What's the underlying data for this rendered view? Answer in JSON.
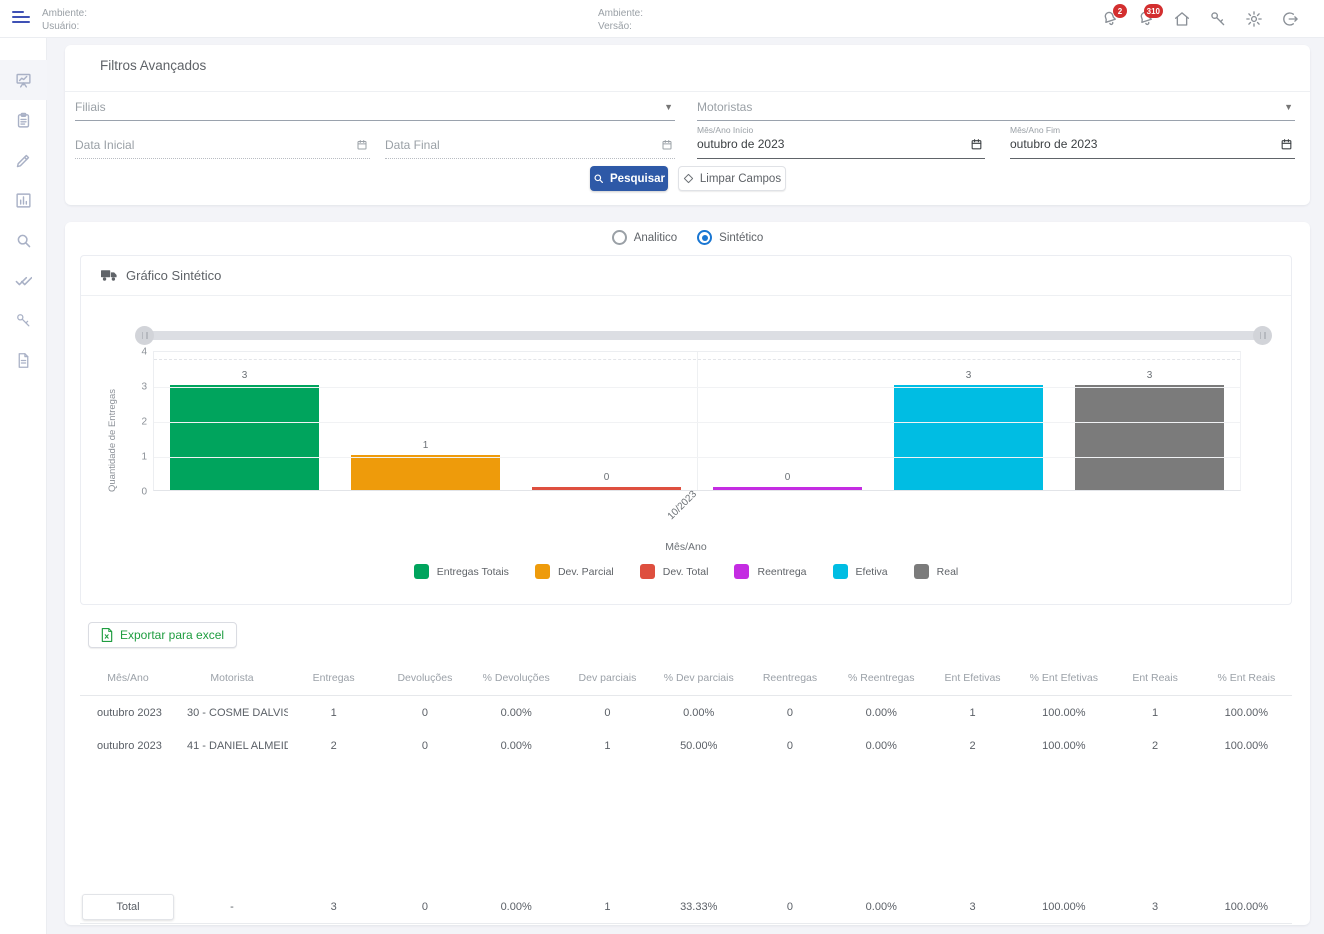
{
  "topbar": {
    "left": {
      "ambiente_label": "Ambiente:",
      "usuario_label": "Usuário:"
    },
    "center": {
      "ambiente_label": "Ambiente:",
      "versao_label": "Versão:"
    },
    "icons": [
      {
        "name": "notifications-bell-icon",
        "badge": "2"
      },
      {
        "name": "messages-bell-icon",
        "badge": "310"
      },
      {
        "name": "home-icon",
        "badge": ""
      },
      {
        "name": "key-icon",
        "badge": ""
      },
      {
        "name": "gear-icon",
        "badge": ""
      },
      {
        "name": "logout-icon",
        "badge": ""
      }
    ]
  },
  "sidebar": {
    "items": [
      {
        "icon": "chart-board-icon",
        "active": true
      },
      {
        "icon": "clipboard-icon",
        "active": false
      },
      {
        "icon": "pencil-icon",
        "active": false
      },
      {
        "icon": "bar-chart-icon",
        "active": false
      },
      {
        "icon": "search-icon",
        "active": false
      },
      {
        "icon": "double-check-icon",
        "active": false
      },
      {
        "icon": "key-icon",
        "active": false
      },
      {
        "icon": "document-icon",
        "active": false
      }
    ]
  },
  "filters": {
    "title": "Filtros Avançados",
    "filiais_label": "Filiais",
    "motoristas_label": "Motoristas",
    "data_inicial_label": "Data Inicial",
    "data_final_label": "Data Final",
    "mes_ano_inicio_label": "Mês/Ano Início",
    "mes_ano_inicio_value": "outubro de 2023",
    "mes_ano_fim_label": "Mês/Ano Fim",
    "mes_ano_fim_value": "outubro de 2023",
    "pesquisar_label": "Pesquisar",
    "limpar_label": "Limpar Campos"
  },
  "view_toggle": {
    "options": [
      {
        "label": "Analitico",
        "selected": false
      },
      {
        "label": "Sintético",
        "selected": true
      }
    ]
  },
  "chart_card": {
    "title": "Gráfico Sintético"
  },
  "chart_data": {
    "type": "bar",
    "title": "Gráfico Sintético",
    "categories": [
      "10/2023"
    ],
    "series": [
      {
        "name": "Entregas Totais",
        "values": [
          3
        ],
        "color": "#00a45d"
      },
      {
        "name": "Dev. Parcial",
        "values": [
          1
        ],
        "color": "#ee9b0b"
      },
      {
        "name": "Dev. Total",
        "values": [
          0
        ],
        "color": "#de4f3f"
      },
      {
        "name": "Reentrega",
        "values": [
          0
        ],
        "color": "#c42ce2"
      },
      {
        "name": "Efetiva",
        "values": [
          3
        ],
        "color": "#00bde3"
      },
      {
        "name": "Real",
        "values": [
          3
        ],
        "color": "#7b7b7b"
      }
    ],
    "xlabel": "Mês/Ano",
    "ylabel": "Quantidade de Entregas",
    "ylim": [
      0,
      4
    ],
    "yticks": [
      0,
      1,
      2,
      3,
      4
    ],
    "grid": true,
    "legend_position": "bottom"
  },
  "export_button": {
    "label": "Exportar para excel"
  },
  "table": {
    "headers": [
      "Mês/Ano",
      "Motorista",
      "Entregas",
      "Devoluções",
      "% Devoluções",
      "Dev parciais",
      "% Dev parciais",
      "Reentregas",
      "% Reentregas",
      "Ent Efetivas",
      "% Ent Efetivas",
      "Ent Reais",
      "% Ent Reais"
    ],
    "rows": [
      [
        "outubro 2023",
        "30 - COSME DALVIS",
        "1",
        "0",
        "0.00%",
        "0",
        "0.00%",
        "0",
        "0.00%",
        "1",
        "100.00%",
        "1",
        "100.00%"
      ],
      [
        "outubro 2023",
        "41 - DANIEL ALMEID",
        "2",
        "0",
        "0.00%",
        "1",
        "50.00%",
        "0",
        "0.00%",
        "2",
        "100.00%",
        "2",
        "100.00%"
      ]
    ],
    "total_row": [
      "Total",
      "-",
      "3",
      "0",
      "0.00%",
      "1",
      "33.33%",
      "0",
      "0.00%",
      "3",
      "100.00%",
      "3",
      "100.00%"
    ]
  }
}
